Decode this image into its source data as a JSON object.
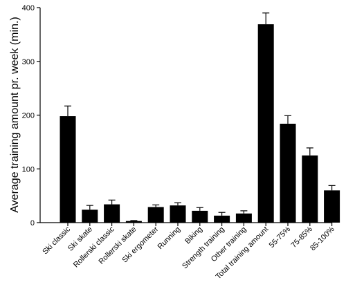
{
  "chart_data": {
    "type": "bar",
    "title": "",
    "xlabel": "",
    "ylabel": "Average training amount pr. week (min.)",
    "ylim": [
      0,
      400
    ],
    "yticks": [
      0,
      100,
      200,
      300,
      400
    ],
    "grid": false,
    "legend": "none",
    "bar_color": "#000000",
    "categories": [
      "Ski classic",
      "Ski skate",
      "Rollerski classic",
      "Rollerski skate",
      "Ski ergometer",
      "Running",
      "Biking",
      "Strength training",
      "Other training",
      "Total training amount",
      "55-75%",
      "75-85%",
      "85-100%"
    ],
    "values": [
      198,
      24,
      34,
      3,
      29,
      32,
      22,
      13,
      17,
      369,
      184,
      125,
      60
    ],
    "errors": [
      19,
      8,
      8,
      1,
      4,
      5,
      6,
      6,
      5,
      21,
      15,
      14,
      9
    ]
  }
}
